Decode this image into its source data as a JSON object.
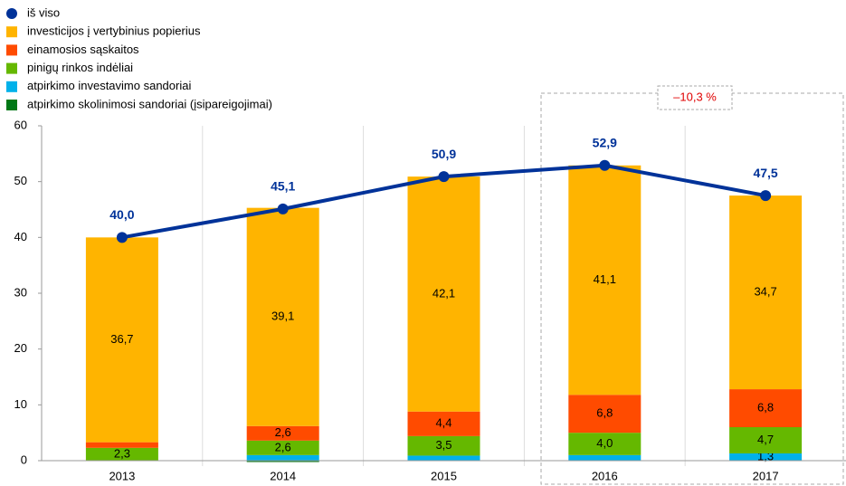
{
  "chart_data": {
    "type": "bar",
    "annotation": "–10,3 %",
    "categories": [
      "2013",
      "2014",
      "2015",
      "2016",
      "2017"
    ],
    "ylim": [
      0,
      60
    ],
    "yticks": [
      0,
      10,
      20,
      30,
      40,
      50,
      60
    ],
    "series": [
      {
        "name": "iš viso",
        "type": "line",
        "color": "#003299",
        "values": [
          40.0,
          45.1,
          50.9,
          52.9,
          47.5
        ],
        "value_labels": [
          "40,0",
          "45,1",
          "50,9",
          "52,9",
          "47,5"
        ]
      },
      {
        "name": "atpirkimo skolinimosi sandoriai (įsipareigojimai)",
        "color": "#007816",
        "values": [
          0,
          -0.2,
          0,
          0,
          0
        ]
      },
      {
        "name": "atpirkimo investavimo sandoriai",
        "color": "#00B1EA",
        "values": [
          0,
          1.0,
          0.9,
          1.0,
          1.3
        ],
        "value_labels": [
          null,
          null,
          null,
          null,
          "1,3"
        ]
      },
      {
        "name": "pinigų rinkos indėliai",
        "color": "#65B800",
        "values": [
          2.3,
          2.6,
          3.5,
          4.0,
          4.7
        ],
        "value_labels": [
          "2,3",
          "2,6",
          "3,5",
          "4,0",
          "4,7"
        ]
      },
      {
        "name": "einamosios sąskaitos",
        "color": "#FF4B00",
        "values": [
          1.0,
          2.6,
          4.4,
          6.8,
          6.8
        ],
        "value_labels": [
          null,
          "2,6",
          "4,4",
          "6,8",
          "6,8"
        ]
      },
      {
        "name": "investicijos į vertybinius popierius",
        "color": "#FFB400",
        "values": [
          36.7,
          39.1,
          42.1,
          41.1,
          34.7
        ],
        "value_labels": [
          "36,7",
          "39,1",
          "42,1",
          "41,1",
          "34,7"
        ]
      }
    ]
  }
}
